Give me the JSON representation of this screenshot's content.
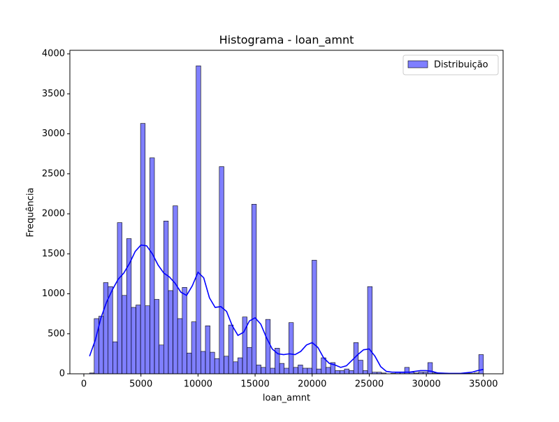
{
  "chart_data": {
    "type": "histogram",
    "title": "Histograma - loan_amnt",
    "xlabel": "loan_amnt",
    "ylabel": "Frequência",
    "name": "Distribuição",
    "color": "#0000ff",
    "legend": "upper right",
    "bins": [
      500,
      905.9,
      1311.8,
      1717.6,
      2123.5,
      2529.4,
      2935.3,
      3341.2,
      3747.1,
      4152.9,
      4558.8,
      4964.7,
      5370.6,
      5776.5,
      6182.4,
      6588.2,
      6994.1,
      7400,
      7805.9,
      8211.8,
      8617.6,
      9023.5,
      9429.4,
      9835.3,
      10241.2,
      10647.1,
      11052.9,
      11458.8,
      11864.7,
      12270.6,
      12676.5,
      13082.4,
      13488.2,
      13894.1,
      14300,
      14705.9,
      15111.8,
      15517.6,
      15923.5,
      16329.4,
      16735.3,
      17141.2,
      17547.1,
      17952.9,
      18358.8,
      18764.7,
      19170.6,
      19576.5,
      19982.4,
      20388.2,
      20794.1,
      21200,
      21605.9,
      22011.8,
      22417.6,
      22823.5,
      23229.4,
      23635.3,
      24041.2,
      24447.1,
      24852.9,
      25258.8,
      25664.7,
      26070.6,
      26476.5,
      26882.4,
      27288.2,
      27694.1,
      28100,
      28505.9,
      28911.8,
      29317.6,
      29723.5,
      30129.4,
      30535.3,
      30941.2,
      31347.1,
      31752.9,
      32158.8,
      32564.7,
      32970.6,
      33376.5,
      33782.4,
      34188.2,
      34594.1,
      35000
    ],
    "counts": [
      10,
      690,
      720,
      1140,
      1090,
      400,
      1890,
      980,
      1690,
      830,
      860,
      3130,
      850,
      2700,
      930,
      360,
      1910,
      1040,
      2100,
      690,
      1080,
      260,
      650,
      3850,
      280,
      600,
      270,
      190,
      2590,
      220,
      610,
      150,
      200,
      710,
      330,
      2120,
      110,
      80,
      680,
      70,
      320,
      130,
      70,
      640,
      80,
      110,
      70,
      70,
      1420,
      60,
      200,
      80,
      140,
      40,
      40,
      60,
      40,
      390,
      170,
      40,
      1090,
      20,
      20,
      10,
      0,
      5,
      20,
      20,
      80,
      20,
      10,
      20,
      20,
      140,
      10,
      5,
      5,
      5,
      5,
      5,
      5,
      5,
      5,
      10,
      240
    ],
    "kde": {
      "color": "#0000ff",
      "x": [
        500,
        1000,
        1500,
        2000,
        2500,
        3000,
        3500,
        4000,
        4500,
        5000,
        5500,
        6000,
        6500,
        7000,
        7500,
        8000,
        8500,
        9000,
        9500,
        10000,
        10500,
        11000,
        11500,
        12000,
        12500,
        13000,
        13500,
        14000,
        14500,
        15000,
        15500,
        16000,
        16500,
        17000,
        17500,
        18000,
        18500,
        19000,
        19500,
        20000,
        20500,
        21000,
        21500,
        22000,
        22500,
        23000,
        23500,
        24000,
        24500,
        25000,
        25500,
        26000,
        26500,
        27000,
        27500,
        28000,
        28500,
        29000,
        29500,
        30000,
        30500,
        31000,
        32000,
        33000,
        34000,
        34500,
        35000
      ],
      "y": [
        220,
        420,
        700,
        900,
        1050,
        1180,
        1260,
        1380,
        1530,
        1610,
        1600,
        1500,
        1360,
        1260,
        1210,
        1130,
        1020,
        980,
        1100,
        1270,
        1200,
        950,
        830,
        840,
        780,
        600,
        480,
        520,
        660,
        700,
        620,
        450,
        310,
        250,
        240,
        250,
        240,
        280,
        360,
        390,
        330,
        200,
        130,
        110,
        80,
        100,
        170,
        240,
        300,
        310,
        220,
        90,
        30,
        20,
        20,
        20,
        20,
        30,
        40,
        40,
        30,
        10,
        5,
        5,
        20,
        40,
        55
      ]
    },
    "xlim": [
      -1225,
      36725
    ],
    "ylim": [
      0,
      4044
    ],
    "xticks": [
      0,
      5000,
      10000,
      15000,
      20000,
      25000,
      30000,
      35000
    ],
    "yticks": [
      0,
      500,
      1000,
      1500,
      2000,
      2500,
      3000,
      3500,
      4000
    ]
  }
}
